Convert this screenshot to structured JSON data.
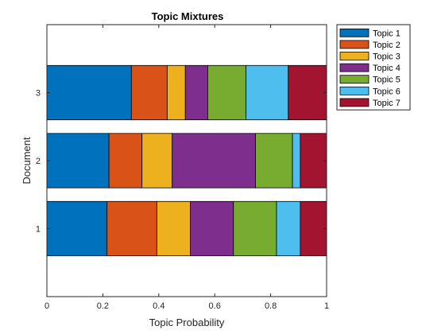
{
  "chart_data": {
    "type": "bar",
    "orientation": "horizontal",
    "stacked": true,
    "title": "Topic Mixtures",
    "xlabel": "Topic Probability",
    "ylabel": "Document",
    "xlim": [
      0,
      1
    ],
    "ylim": [
      0,
      4
    ],
    "x_ticks": [
      "0",
      "0.2",
      "0.4",
      "0.6",
      "0.8",
      "1"
    ],
    "categories": [
      "1",
      "2",
      "3"
    ],
    "grid": false,
    "legend_position": "outside-top-right",
    "series": [
      {
        "name": "Topic 1",
        "color": "#0072BD",
        "values": [
          0.215,
          0.222,
          0.302
        ]
      },
      {
        "name": "Topic 2",
        "color": "#D95319",
        "values": [
          0.178,
          0.118,
          0.128
        ]
      },
      {
        "name": "Topic 3",
        "color": "#EDB120",
        "values": [
          0.12,
          0.108,
          0.065
        ]
      },
      {
        "name": "Topic 4",
        "color": "#7E2F8E",
        "values": [
          0.154,
          0.298,
          0.08
        ]
      },
      {
        "name": "Topic 5",
        "color": "#77AC30",
        "values": [
          0.154,
          0.132,
          0.137
        ]
      },
      {
        "name": "Topic 6",
        "color": "#4DBEEE",
        "values": [
          0.085,
          0.028,
          0.151
        ]
      },
      {
        "name": "Topic 7",
        "color": "#A2142F",
        "values": [
          0.094,
          0.094,
          0.137
        ]
      }
    ]
  }
}
